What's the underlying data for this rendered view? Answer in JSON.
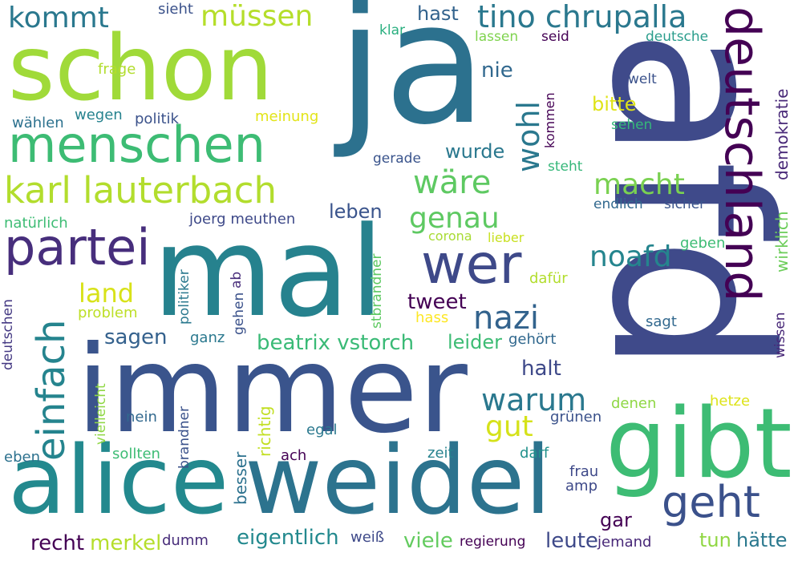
{
  "cloud": {
    "words": [
      {
        "text": "afd",
        "color": "#3f4a8a"
      },
      {
        "text": "mal",
        "color": "#26828e"
      },
      {
        "text": "immer",
        "color": "#3a548c"
      },
      {
        "text": "ja",
        "color": "#2c718e"
      },
      {
        "text": "schon",
        "color": "#a0da39"
      },
      {
        "text": "alice",
        "color": "#23898e"
      },
      {
        "text": "weidel",
        "color": "#2c738e"
      },
      {
        "text": "gibt",
        "color": "#3dbc74"
      },
      {
        "text": "deutschland",
        "color": "#440154"
      },
      {
        "text": "menschen",
        "color": "#3dbc74"
      },
      {
        "text": "karl lauterbach",
        "color": "#b2dd2d"
      },
      {
        "text": "partei",
        "color": "#472e7c"
      },
      {
        "text": "wer",
        "color": "#3e4989"
      },
      {
        "text": "tino chrupalla",
        "color": "#2a788e"
      },
      {
        "text": "geht",
        "color": "#3b518b"
      },
      {
        "text": "einfach",
        "color": "#25848e"
      },
      {
        "text": "müssen",
        "color": "#b5de2b"
      },
      {
        "text": "kommt",
        "color": "#2a788e"
      },
      {
        "text": "macht",
        "color": "#7ad151"
      },
      {
        "text": "wäre",
        "color": "#5ec962"
      },
      {
        "text": "genau",
        "color": "#5ec962"
      },
      {
        "text": "noafd",
        "color": "#25858e"
      },
      {
        "text": "nazi",
        "color": "#33638d"
      },
      {
        "text": "wohl",
        "color": "#2a788e"
      },
      {
        "text": "warum",
        "color": "#2a788e"
      },
      {
        "text": "gut",
        "color": "#d5e21a"
      },
      {
        "text": "land",
        "color": "#d8e219"
      },
      {
        "text": "beatrix vstorch",
        "color": "#3aba76"
      },
      {
        "text": "tweet",
        "color": "#440154"
      },
      {
        "text": "sagen",
        "color": "#34618d"
      },
      {
        "text": "leben",
        "color": "#3a548c"
      },
      {
        "text": "hast",
        "color": "#33638d"
      },
      {
        "text": "nie",
        "color": "#31688e"
      },
      {
        "text": "bitte",
        "color": "#dfe318"
      },
      {
        "text": "wurde",
        "color": "#2a788e"
      },
      {
        "text": "leider",
        "color": "#3dbc74"
      },
      {
        "text": "halt",
        "color": "#3e4989"
      },
      {
        "text": "eigentlich",
        "color": "#23898e"
      },
      {
        "text": "recht",
        "color": "#440154"
      },
      {
        "text": "merkel",
        "color": "#b5de2b"
      },
      {
        "text": "viele",
        "color": "#63cb5f"
      },
      {
        "text": "leute",
        "color": "#3e4989"
      },
      {
        "text": "tun",
        "color": "#90d743"
      },
      {
        "text": "hätte",
        "color": "#2a788e"
      },
      {
        "text": "gar",
        "color": "#440154"
      },
      {
        "text": "wirklich",
        "color": "#6ccd5a"
      },
      {
        "text": "demokratie",
        "color": "#482878"
      },
      {
        "text": "corona",
        "color": "#a8db34"
      },
      {
        "text": "lieber",
        "color": "#c8e020"
      },
      {
        "text": "geben",
        "color": "#3dbc74"
      },
      {
        "text": "dafür",
        "color": "#b2dd2d"
      },
      {
        "text": "hass",
        "color": "#fde725"
      },
      {
        "text": "gehört",
        "color": "#31688e"
      },
      {
        "text": "sagt",
        "color": "#31688e"
      },
      {
        "text": "wissen",
        "color": "#482878"
      },
      {
        "text": "hetze",
        "color": "#dde318"
      },
      {
        "text": "denen",
        "color": "#8fd744"
      },
      {
        "text": "grünen",
        "color": "#3b528b"
      },
      {
        "text": "darf",
        "color": "#21918c"
      },
      {
        "text": "frau",
        "color": "#3e4989"
      },
      {
        "text": "amp",
        "color": "#3e4989"
      },
      {
        "text": "jemand",
        "color": "#482878"
      },
      {
        "text": "weiß",
        "color": "#3e4989"
      },
      {
        "text": "regierung",
        "color": "#440154"
      },
      {
        "text": "dumm",
        "color": "#472c7a"
      },
      {
        "text": "zeit",
        "color": "#26828e"
      },
      {
        "text": "egal",
        "color": "#2a788e"
      },
      {
        "text": "nein",
        "color": "#31688e"
      },
      {
        "text": "ach",
        "color": "#440154"
      },
      {
        "text": "sollten",
        "color": "#3dbc74"
      },
      {
        "text": "eben",
        "color": "#2c718e"
      },
      {
        "text": "ganz",
        "color": "#2a788e"
      },
      {
        "text": "problem",
        "color": "#bddf26"
      },
      {
        "text": "natürlich",
        "color": "#3dbc74"
      },
      {
        "text": "joerg meuthen",
        "color": "#3e4989"
      },
      {
        "text": "wählen",
        "color": "#2c718e"
      },
      {
        "text": "wegen",
        "color": "#26828e"
      },
      {
        "text": "politik",
        "color": "#3b528b"
      },
      {
        "text": "meinung",
        "color": "#e2e418"
      },
      {
        "text": "frage",
        "color": "#b2dd2d"
      },
      {
        "text": "sieht",
        "color": "#3b528b"
      },
      {
        "text": "klar",
        "color": "#29af7f"
      },
      {
        "text": "lassen",
        "color": "#7fd34e"
      },
      {
        "text": "seid",
        "color": "#440154"
      },
      {
        "text": "deutsche",
        "color": "#2a9d8c"
      },
      {
        "text": "welt",
        "color": "#3b528b"
      },
      {
        "text": "sehen",
        "color": "#35b779"
      },
      {
        "text": "gerade",
        "color": "#3a548c"
      },
      {
        "text": "steht",
        "color": "#35b779"
      },
      {
        "text": "endlich",
        "color": "#31688e"
      },
      {
        "text": "sicher",
        "color": "#3a548c"
      },
      {
        "text": "kommen",
        "color": "#440154"
      },
      {
        "text": "deutschen",
        "color": "#443983"
      },
      {
        "text": "politiker",
        "color": "#2a788e"
      },
      {
        "text": "gehen",
        "color": "#3b528b"
      },
      {
        "text": "ab",
        "color": "#472c7a"
      },
      {
        "text": "stbrandner",
        "color": "#5ec962"
      },
      {
        "text": "brandner",
        "color": "#3b528b"
      },
      {
        "text": "vielleicht",
        "color": "#8fd744"
      },
      {
        "text": "richtig",
        "color": "#c2df23"
      },
      {
        "text": "besser",
        "color": "#2c718e"
      }
    ]
  }
}
